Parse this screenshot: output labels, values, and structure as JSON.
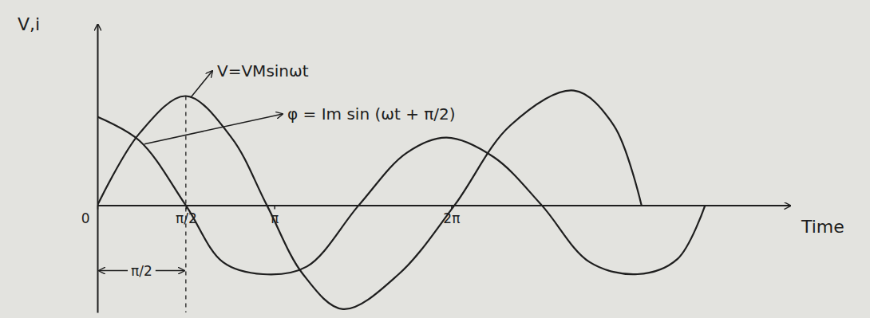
{
  "chart_data": {
    "type": "line",
    "x_label": "Time",
    "y_label": "V,i",
    "xlim": [
      0,
      12.3
    ],
    "ylim": [
      -0.98,
      1.66
    ],
    "xticks": [
      0,
      {
        "value": 1.5708,
        "label": "π/2"
      },
      {
        "value": 3.1416,
        "label": "π"
      },
      {
        "value": 6.2832,
        "label": "2π"
      }
    ],
    "tick_labels": "x",
    "grid": false,
    "series": [
      {
        "name": "V=VMsinωt",
        "color": "#1e1e1e",
        "line_style": "solid",
        "x": [
          0,
          0.75,
          1.57,
          2.38,
          3.01,
          3.65,
          4.36,
          5.35,
          6.34,
          7.33,
          8.46,
          9.17,
          9.66
        ],
        "values": [
          0,
          0.66,
          1.0,
          0.62,
          0,
          -0.63,
          -0.95,
          -0.63,
          0,
          0.73,
          1.05,
          0.73,
          0
        ]
      },
      {
        "name": "φ = Im sin (ωt + π/2)",
        "color": "#1e1e1e",
        "line_style": "solid",
        "x": [
          0,
          0.75,
          1.57,
          2.23,
          2.94,
          3.72,
          4.64,
          5.49,
          6.2,
          7.04,
          7.89,
          8.74,
          9.59,
          10.3,
          10.79
        ],
        "values": [
          0.81,
          0.59,
          0,
          -0.52,
          -0.63,
          -0.56,
          0,
          0.48,
          0.62,
          0.44,
          0,
          -0.52,
          -0.63,
          -0.49,
          0
        ]
      }
    ],
    "annotations": [
      {
        "text": "π/2",
        "x0": 0,
        "x1": 1.5708
      }
    ]
  }
}
